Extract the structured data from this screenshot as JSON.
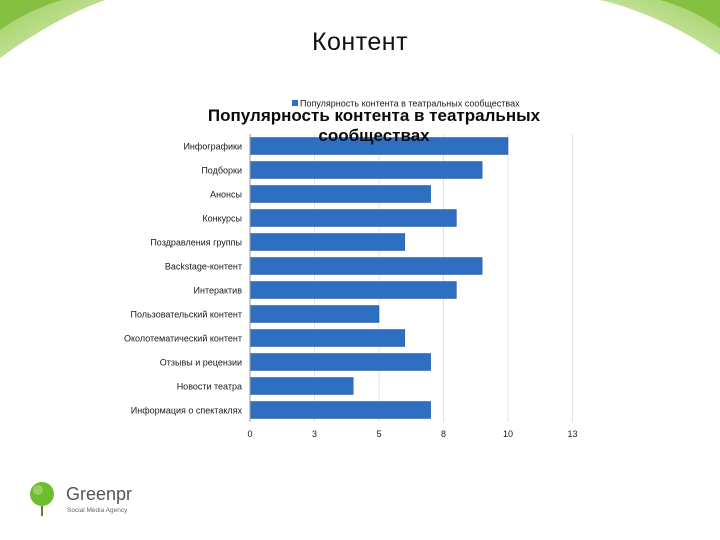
{
  "slide": {
    "title": "Контент"
  },
  "chart_data": {
    "type": "bar",
    "orientation": "horizontal",
    "title": "Популярность контента в театральных сообществах",
    "legend": {
      "entries": [
        "Популярность контента в театральных сообществах"
      ],
      "placement": "top"
    },
    "categories": [
      "Инфографики",
      "Подборки",
      "Анонсы",
      "Конкурсы",
      "Поздравления группы",
      "Backstage-контент",
      "Интерактив",
      "Пользовательский контент",
      "Околотематический контент",
      "Отзывы и рецензии",
      "Новости театра",
      "Информация о спектаклях"
    ],
    "series": [
      {
        "name": "Популярность контента в театральных сообществах",
        "color": "#2E6FC2",
        "values": [
          10,
          9,
          7,
          8,
          6,
          9,
          8,
          5,
          6,
          7,
          4,
          7
        ]
      }
    ],
    "xticks": [
      "0",
      "3",
      "5",
      "8",
      "10",
      "13"
    ],
    "xtick_values": [
      0,
      2.5,
      5,
      7.5,
      10,
      12.5
    ],
    "xlim": [
      0,
      12.5
    ],
    "grid": true,
    "xlabel": "",
    "ylabel": ""
  },
  "logo": {
    "name": "Greenpr",
    "tagline": "Social Media Agency",
    "color": "#6DBE2E"
  }
}
